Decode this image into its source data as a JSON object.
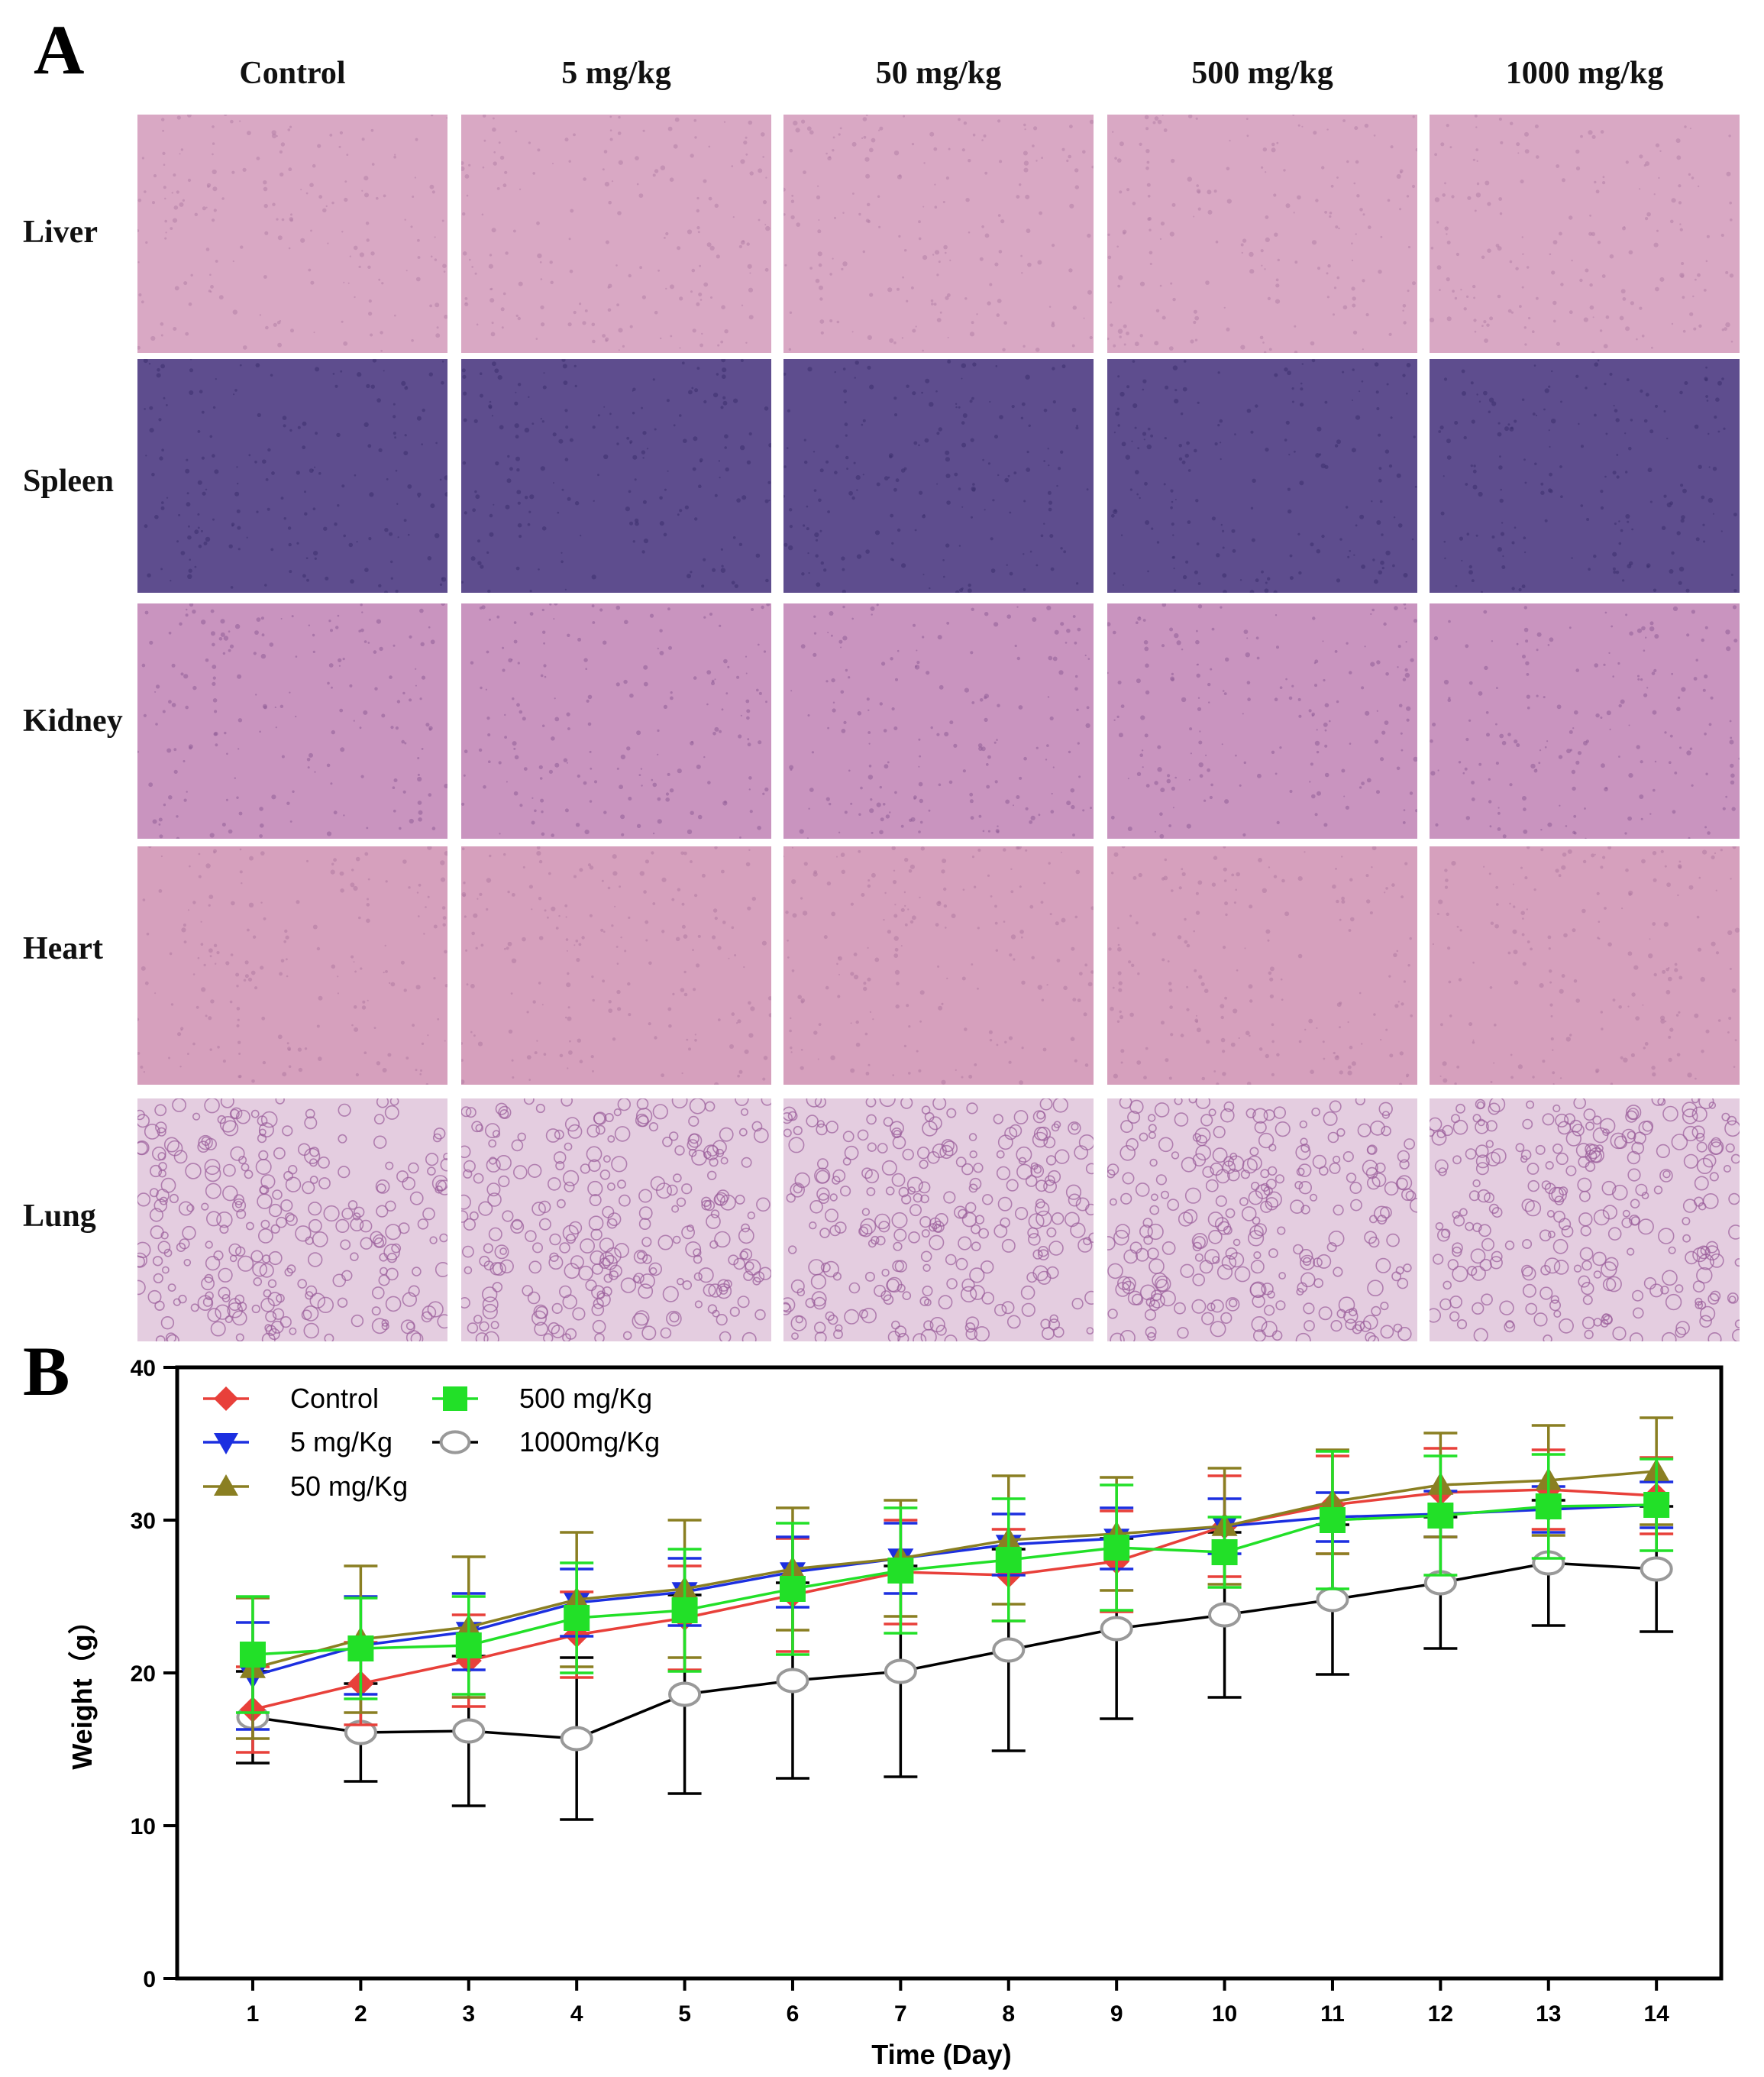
{
  "panel_a": {
    "letter": "A",
    "columns": [
      "Control",
      "5 mg/kg",
      "50 mg/kg",
      "500 mg/kg",
      "1000 mg/kg"
    ],
    "rows": [
      {
        "label": "Liver",
        "color": "#d9a8c4",
        "accent": "#b57fa8"
      },
      {
        "label": "Spleen",
        "color": "#5e4d8e",
        "accent": "#3d2f6e"
      },
      {
        "label": "Kidney",
        "color": "#c994bf",
        "accent": "#8f5d98"
      },
      {
        "label": "Heart",
        "color": "#d6a0bd",
        "accent": "#b27aa3"
      },
      {
        "label": "Lung",
        "color": "#e4cde0",
        "accent": "#9a5c9a"
      }
    ]
  },
  "panel_b": {
    "letter": "B"
  },
  "chart_data": {
    "type": "line",
    "xlabel": "Time (Day)",
    "ylabel": "Weight（g）",
    "x": [
      1,
      2,
      3,
      4,
      5,
      6,
      7,
      8,
      9,
      10,
      11,
      12,
      13,
      14
    ],
    "xlim": [
      0.3,
      14.6
    ],
    "ylim": [
      0,
      40
    ],
    "yticks": [
      0,
      10,
      20,
      30,
      40
    ],
    "grid": false,
    "legend_position": "top-left",
    "series": [
      {
        "name": "1000mg/Kg",
        "color": "#000000",
        "marker": "open-circle",
        "marker_color": "#999999",
        "values": [
          17.1,
          16.1,
          16.2,
          15.7,
          18.6,
          19.5,
          20.1,
          21.5,
          22.9,
          23.8,
          24.8,
          25.9,
          27.2,
          26.8
        ],
        "errors": [
          3.0,
          3.2,
          4.9,
          5.3,
          6.5,
          6.4,
          6.9,
          6.6,
          5.9,
          5.4,
          4.9,
          4.3,
          4.1,
          4.1
        ]
      },
      {
        "name": "Control",
        "color": "#e8403a",
        "marker": "diamond",
        "values": [
          17.6,
          19.3,
          20.8,
          22.5,
          23.6,
          25.1,
          26.6,
          26.4,
          27.3,
          29.6,
          31.0,
          31.8,
          32.0,
          31.6
        ],
        "errors": [
          2.8,
          2.7,
          3.0,
          2.8,
          3.4,
          3.7,
          3.4,
          3.0,
          3.3,
          3.3,
          3.2,
          2.9,
          2.6,
          2.5
        ]
      },
      {
        "name": "5 mg/Kg",
        "color": "#1c2fe0",
        "marker": "triangle-down",
        "values": [
          19.8,
          21.8,
          22.7,
          24.6,
          25.3,
          26.6,
          27.5,
          28.4,
          28.8,
          29.6,
          30.2,
          30.4,
          30.7,
          31.0
        ],
        "errors": [
          3.5,
          3.2,
          2.5,
          2.2,
          2.2,
          2.3,
          2.3,
          2.0,
          2.0,
          1.8,
          1.6,
          1.5,
          1.5,
          1.5
        ]
      },
      {
        "name": "50 mg/Kg",
        "color": "#8a7f22",
        "marker": "triangle-up",
        "values": [
          20.3,
          22.2,
          23.0,
          24.8,
          25.5,
          26.8,
          27.5,
          28.7,
          29.1,
          29.6,
          31.2,
          32.3,
          32.6,
          33.2
        ],
        "errors": [
          4.6,
          4.8,
          4.6,
          4.4,
          4.5,
          4.0,
          3.8,
          4.2,
          3.7,
          3.8,
          3.4,
          3.4,
          3.6,
          3.5
        ]
      },
      {
        "name": "500 mg/Kg",
        "color": "#22e028",
        "marker": "square",
        "values": [
          21.2,
          21.6,
          21.8,
          23.6,
          24.1,
          25.5,
          26.7,
          27.4,
          28.2,
          27.9,
          30.0,
          30.3,
          30.9,
          31.0
        ],
        "errors": [
          3.8,
          3.3,
          3.2,
          3.6,
          4.0,
          4.3,
          4.1,
          4.0,
          4.1,
          2.3,
          4.5,
          3.9,
          3.4,
          3.0
        ]
      }
    ],
    "legend_order": [
      "Control",
      "500 mg/Kg",
      "5 mg/Kg",
      "1000mg/Kg",
      "50 mg/Kg"
    ]
  }
}
